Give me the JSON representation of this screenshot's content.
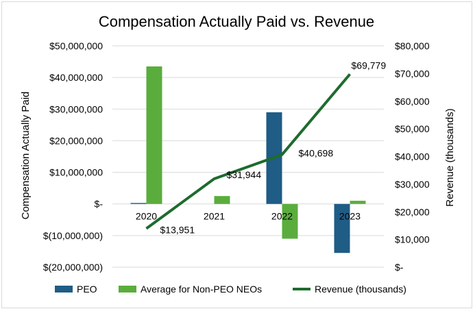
{
  "chart_data": {
    "type": "bar",
    "title": "Compensation Actually Paid vs. Revenue",
    "categories": [
      "2020",
      "2021",
      "2022",
      "2023"
    ],
    "ylabel": "Compensation Actually Paid",
    "y2label": "Revenue (thousands)",
    "ylim": [
      -20000000,
      50000000
    ],
    "y2lim": [
      0,
      80000
    ],
    "yticks": [
      "$50,000,000",
      "$40,000,000",
      "$30,000,000",
      "$20,000,000",
      "$10,000,000",
      "$-",
      "$(10,000,000)",
      "$(20,000,000)"
    ],
    "y2ticks": [
      "$80,000",
      "$70,000",
      "$60,000",
      "$50,000",
      "$40,000",
      "$30,000",
      "$20,000",
      "$10,000",
      "$-"
    ],
    "grid": true,
    "legend_position": "bottom",
    "series": [
      {
        "name": "PEO",
        "type": "bar",
        "color": "#1f5c86",
        "values": [
          300000,
          0,
          29000000,
          -15500000
        ]
      },
      {
        "name": "Average for Non-PEO NEOs",
        "type": "bar",
        "color": "#5aad3c",
        "values": [
          43500000,
          2500000,
          -11000000,
          1000000
        ]
      },
      {
        "name": "Revenue (thousands)",
        "type": "line",
        "axis": "secondary",
        "color": "#1e6b2e",
        "values": [
          13951,
          31944,
          40698,
          69779
        ],
        "labels": [
          "$13,951",
          "$31,944",
          "$40,698",
          "$69,779"
        ]
      }
    ]
  }
}
